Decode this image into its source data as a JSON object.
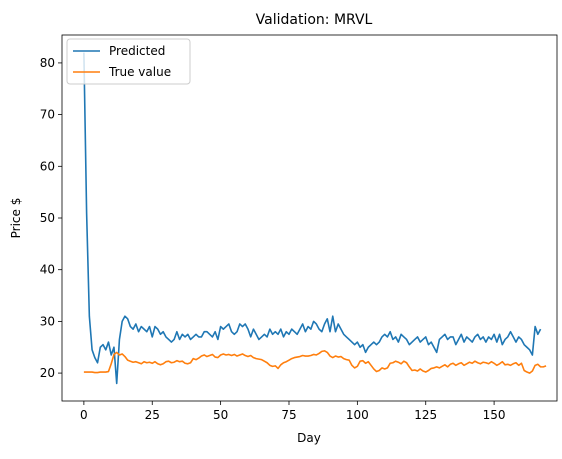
{
  "chart_data": {
    "type": "line",
    "title": "Validation: MRVL",
    "xlabel": "Day",
    "ylabel": "Price $",
    "xlim": [
      -8,
      173
    ],
    "ylim": [
      14.6,
      85.4
    ],
    "xticks": [
      0,
      25,
      50,
      75,
      100,
      125,
      150
    ],
    "yticks": [
      20,
      30,
      40,
      50,
      60,
      70,
      80
    ],
    "grid": false,
    "legend_position": "top-left",
    "series": [
      {
        "name": "Predicted",
        "color": "#1f77b4",
        "values": [
          82.0,
          51.0,
          31.0,
          24.5,
          23.0,
          22.0,
          25.0,
          25.5,
          24.5,
          26.0,
          23.5,
          25.0,
          18.0,
          26.5,
          30.0,
          31.0,
          30.5,
          29.0,
          28.5,
          29.5,
          28.0,
          29.0,
          28.5,
          28.0,
          29.0,
          27.0,
          29.0,
          28.5,
          27.5,
          28.0,
          27.0,
          26.5,
          26.0,
          26.5,
          28.0,
          26.5,
          27.5,
          27.0,
          27.5,
          26.5,
          27.0,
          27.5,
          27.0,
          27.0,
          28.0,
          28.0,
          27.5,
          27.0,
          28.0,
          26.5,
          29.0,
          28.5,
          29.0,
          29.5,
          28.0,
          27.5,
          28.0,
          29.5,
          29.0,
          29.5,
          28.5,
          27.0,
          28.5,
          27.5,
          26.5,
          27.0,
          27.5,
          27.0,
          28.5,
          27.5,
          28.0,
          27.5,
          28.5,
          27.0,
          28.0,
          27.5,
          28.5,
          28.0,
          27.5,
          28.5,
          29.5,
          28.0,
          29.0,
          28.5,
          30.0,
          29.5,
          28.5,
          28.0,
          29.5,
          30.5,
          28.0,
          31.0,
          28.0,
          29.5,
          28.5,
          27.5,
          27.0,
          26.5,
          26.0,
          25.5,
          26.0,
          25.0,
          25.5,
          24.0,
          25.0,
          25.5,
          26.0,
          25.5,
          26.0,
          27.0,
          27.5,
          27.0,
          28.0,
          26.5,
          27.0,
          26.0,
          27.5,
          27.0,
          26.5,
          25.5,
          26.0,
          26.5,
          27.0,
          26.0,
          26.5,
          27.0,
          25.5,
          26.0,
          25.0,
          24.0,
          26.5,
          27.0,
          27.5,
          26.5,
          27.0,
          27.0,
          25.5,
          26.5,
          27.5,
          26.0,
          27.0,
          26.5,
          26.0,
          27.0,
          27.5,
          26.5,
          27.0,
          26.0,
          27.0,
          26.5,
          27.5,
          26.0,
          27.5,
          25.5,
          26.5,
          27.0,
          28.0,
          27.0,
          26.0,
          27.0,
          26.5,
          25.5,
          25.0,
          24.5,
          23.5,
          29.0,
          27.5,
          28.5
        ]
      },
      {
        "name": "True value",
        "color": "#ff7f0e",
        "values": [
          20.2,
          20.2,
          20.2,
          20.2,
          20.1,
          20.1,
          20.2,
          20.2,
          20.2,
          20.3,
          21.8,
          23.6,
          24.0,
          23.5,
          23.7,
          23.2,
          22.5,
          22.3,
          22.1,
          22.2,
          22.0,
          21.8,
          22.2,
          22.0,
          22.1,
          21.9,
          22.2,
          21.8,
          21.6,
          21.8,
          22.2,
          22.3,
          22.0,
          22.1,
          22.4,
          22.2,
          22.3,
          21.9,
          21.8,
          22.0,
          22.8,
          22.6,
          22.9,
          23.3,
          23.5,
          23.2,
          23.4,
          23.6,
          23.1,
          23.0,
          23.5,
          23.7,
          23.5,
          23.6,
          23.4,
          23.6,
          23.3,
          23.5,
          23.7,
          23.4,
          23.2,
          23.4,
          23.0,
          22.8,
          22.7,
          22.6,
          22.3,
          22.0,
          21.5,
          21.3,
          21.4,
          20.9,
          21.6,
          22.0,
          22.2,
          22.5,
          22.8,
          23.0,
          23.1,
          23.2,
          23.4,
          23.3,
          23.3,
          23.4,
          23.6,
          23.5,
          23.8,
          24.2,
          24.3,
          24.0,
          23.3,
          23.0,
          23.3,
          23.1,
          23.2,
          22.8,
          22.6,
          22.5,
          21.5,
          21.0,
          21.3,
          22.3,
          22.4,
          21.9,
          22.2,
          21.5,
          20.8,
          20.3,
          20.5,
          21.0,
          20.8,
          21.0,
          21.9,
          22.0,
          22.3,
          22.1,
          21.8,
          22.3,
          22.0,
          21.2,
          20.5,
          20.6,
          20.4,
          20.8,
          20.4,
          20.2,
          20.5,
          20.9,
          21.0,
          21.2,
          21.0,
          21.3,
          21.6,
          21.2,
          21.7,
          21.9,
          21.5,
          21.8,
          22.0,
          21.5,
          21.8,
          22.1,
          21.9,
          22.3,
          22.0,
          21.8,
          22.1,
          22.0,
          21.8,
          22.2,
          21.9,
          21.5,
          21.8,
          22.2,
          21.6,
          21.7,
          21.5,
          21.8,
          22.0,
          21.5,
          21.9,
          20.5,
          20.2,
          20.0,
          20.4,
          21.5,
          21.7,
          21.2,
          21.2,
          21.4
        ]
      }
    ]
  }
}
